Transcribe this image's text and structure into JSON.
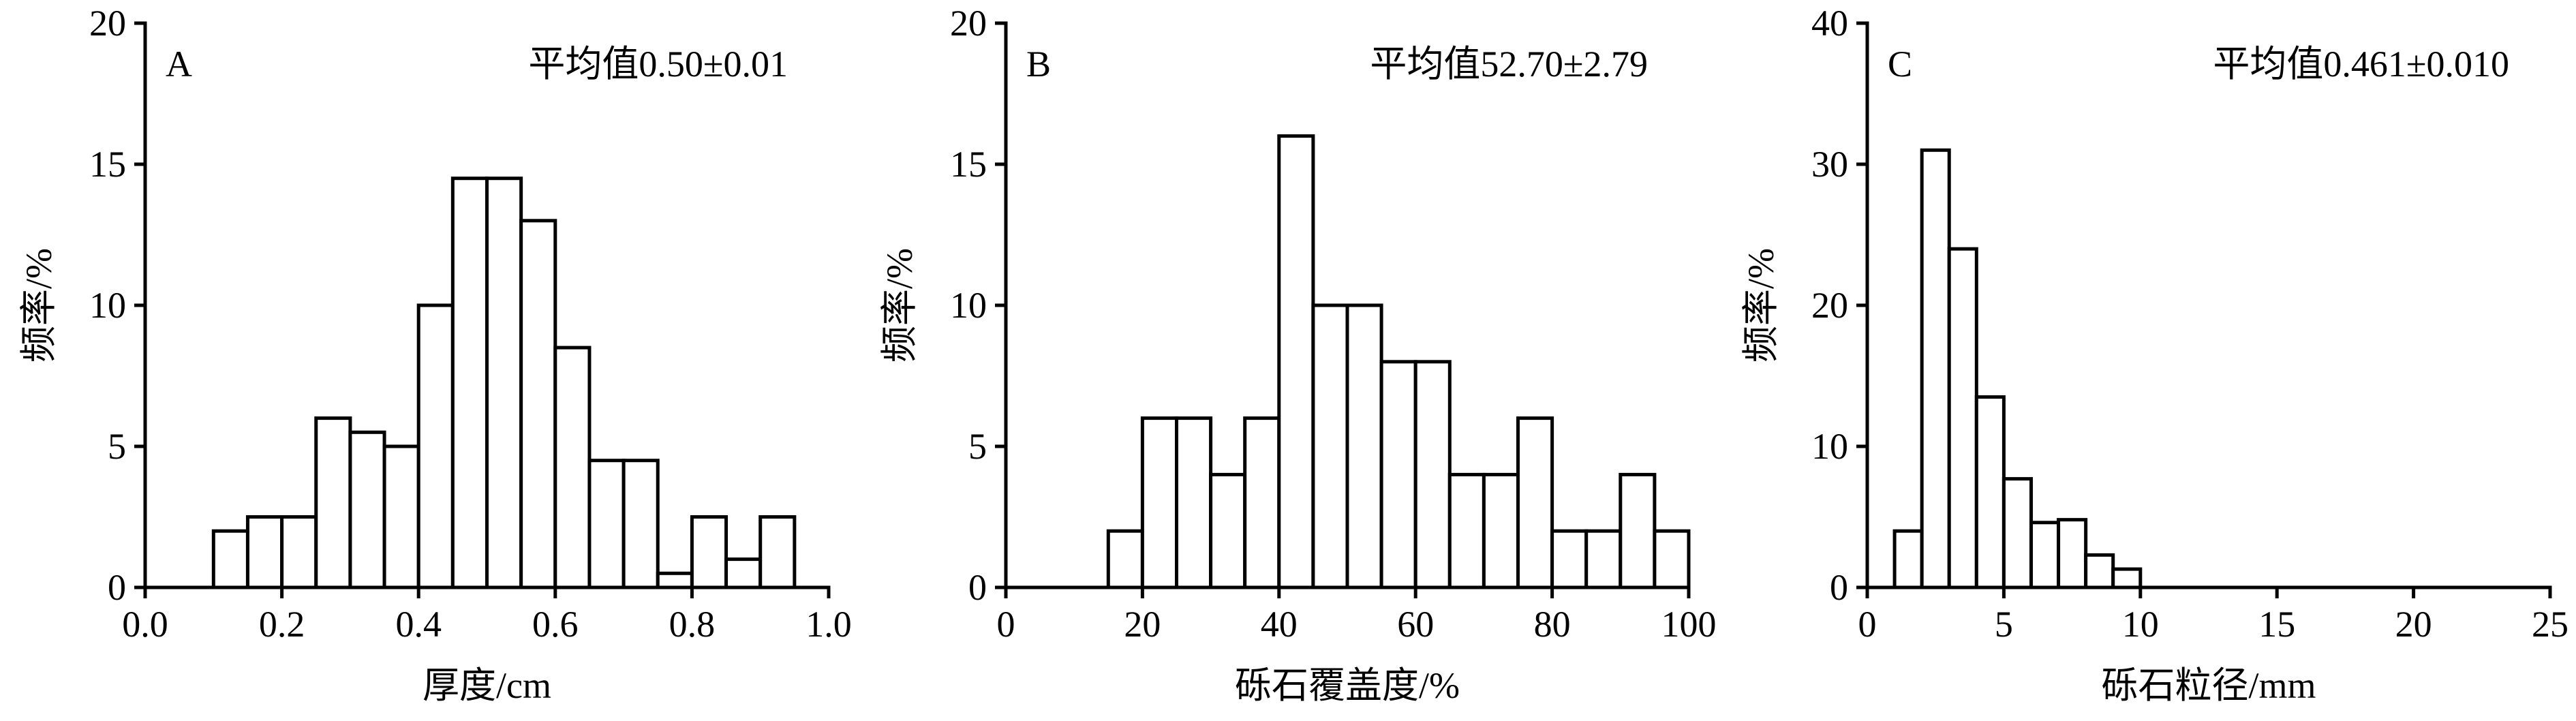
{
  "chart_data": [
    {
      "type": "bar",
      "panel_label": "A",
      "annotation": "平均值0.50±0.01",
      "xlabel": "厚度/cm",
      "ylabel": "频率/%",
      "xlim": [
        0.0,
        1.0
      ],
      "ylim": [
        0,
        20
      ],
      "xticks": [
        "0.0",
        "0.2",
        "0.4",
        "0.6",
        "0.8",
        "1.0"
      ],
      "xtick_values": [
        0.0,
        0.2,
        0.4,
        0.6,
        0.8,
        1.0
      ],
      "yticks": [
        "0",
        "5",
        "10",
        "15",
        "20"
      ],
      "ytick_values": [
        0,
        5,
        10,
        15,
        20
      ],
      "bin_edges": [
        0.1,
        0.15,
        0.2,
        0.25,
        0.3,
        0.35,
        0.4,
        0.45,
        0.5,
        0.55,
        0.6,
        0.65,
        0.7,
        0.75,
        0.8,
        0.85,
        0.9,
        0.95
      ],
      "values": [
        2,
        2.5,
        2.5,
        6,
        5.5,
        5,
        10,
        14.5,
        14.5,
        13,
        8.5,
        4.5,
        4.5,
        0.5,
        2.5,
        1,
        2.5
      ]
    },
    {
      "type": "bar",
      "panel_label": "B",
      "annotation": "平均值52.70±2.79",
      "xlabel": "砾石覆盖度/%",
      "ylabel": "频率/%",
      "xlim": [
        0,
        100
      ],
      "ylim": [
        0,
        20
      ],
      "xticks": [
        "0",
        "20",
        "40",
        "60",
        "80",
        "100"
      ],
      "xtick_values": [
        0,
        20,
        40,
        60,
        80,
        100
      ],
      "yticks": [
        "0",
        "5",
        "10",
        "15",
        "20"
      ],
      "ytick_values": [
        0,
        5,
        10,
        15,
        20
      ],
      "bin_edges": [
        15,
        20,
        25,
        30,
        35,
        40,
        45,
        50,
        55,
        60,
        65,
        70,
        75,
        80,
        85,
        90,
        95,
        100
      ],
      "values": [
        2,
        6,
        6,
        4,
        6,
        16,
        10,
        10,
        8,
        8,
        4,
        4,
        6,
        2,
        2,
        4,
        2
      ]
    },
    {
      "type": "bar",
      "panel_label": "C",
      "annotation": "平均值0.461±0.010",
      "xlabel": "砾石粒径/mm",
      "ylabel": "频率/%",
      "xlim": [
        0,
        25
      ],
      "ylim": [
        0,
        40
      ],
      "xticks": [
        "0",
        "5",
        "10",
        "15",
        "20",
        "25"
      ],
      "xtick_values": [
        0,
        5,
        10,
        15,
        20,
        25
      ],
      "yticks": [
        "0",
        "10",
        "20",
        "30",
        "40"
      ],
      "ytick_values": [
        0,
        10,
        20,
        30,
        40
      ],
      "bin_edges": [
        1,
        2,
        3,
        4,
        5,
        6,
        7,
        8,
        9,
        10
      ],
      "values": [
        4,
        31,
        24,
        13.5,
        7.7,
        4.6,
        4.8,
        2.3,
        1.3
      ]
    }
  ]
}
